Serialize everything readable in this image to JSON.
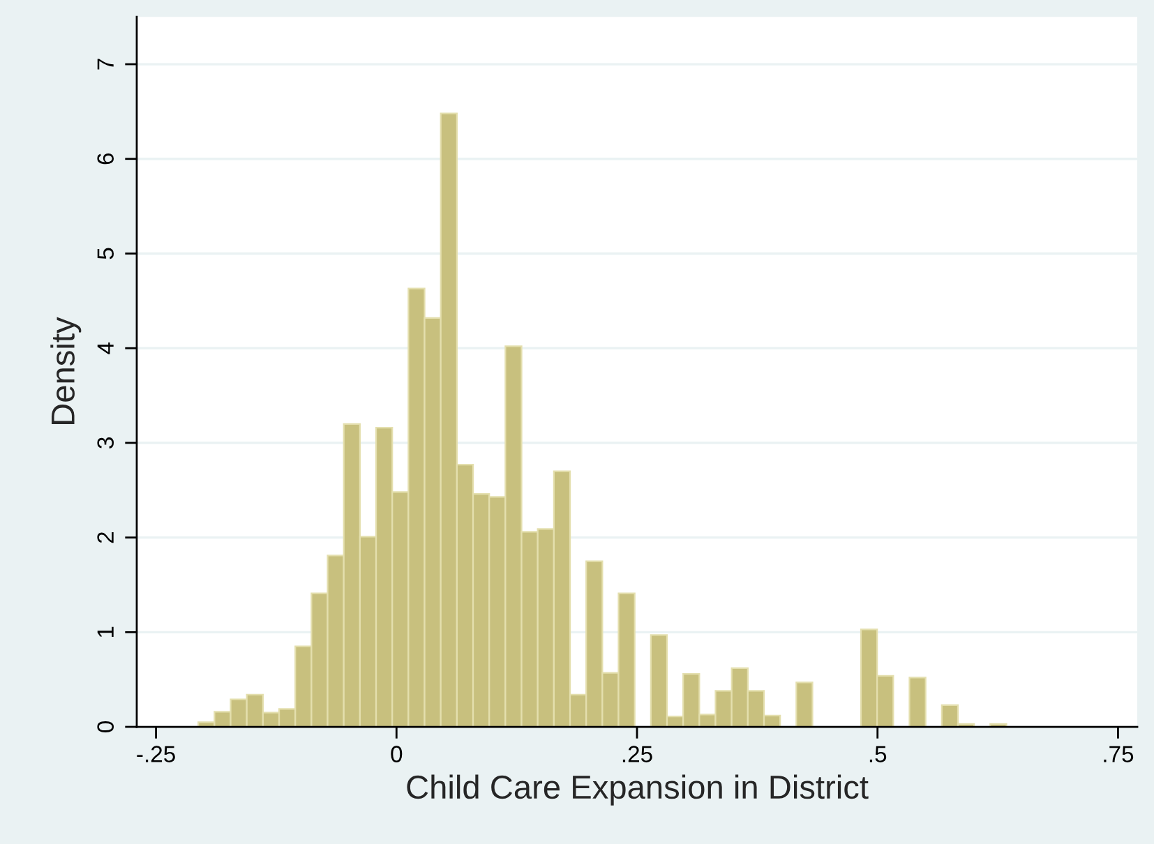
{
  "chart_data": {
    "type": "histogram",
    "xlabel": "Child Care Expansion in District",
    "ylabel": "Density",
    "color": "#c8c07e",
    "bins": [
      -0.206,
      -0.1892,
      -0.1724,
      -0.1556,
      -0.1388,
      -0.122,
      -0.1052,
      -0.0884,
      -0.0716,
      -0.0548,
      -0.038,
      -0.0212,
      -0.0044,
      0.0124,
      0.0292,
      0.046,
      0.0628,
      0.0796,
      0.0964,
      0.1132,
      0.13,
      0.1468,
      0.1636,
      0.1804,
      0.1972,
      0.214,
      0.2308,
      0.2476,
      0.2644,
      0.2812,
      0.298,
      0.3148,
      0.3316,
      0.3484,
      0.3652,
      0.382,
      0.3988,
      0.4156,
      0.4324,
      0.4492,
      0.466,
      0.4828,
      0.4996,
      0.5164,
      0.5332,
      0.55,
      0.5668,
      0.5836,
      0.6004,
      0.6172,
      0.634
    ],
    "values": [
      0.05,
      0.16,
      0.29,
      0.34,
      0.15,
      0.19,
      0.85,
      1.41,
      1.81,
      3.2,
      2.01,
      3.16,
      2.48,
      4.63,
      4.32,
      6.48,
      2.77,
      2.46,
      2.43,
      4.02,
      2.06,
      2.09,
      2.7,
      0.34,
      1.75,
      0.57,
      1.41,
      0,
      0.97,
      0.11,
      0.56,
      0.13,
      0.38,
      0.62,
      0.38,
      0.12,
      0,
      0.47,
      0,
      0,
      0,
      1.03,
      0.54,
      0,
      0.52,
      0,
      0.23,
      0.03,
      0,
      0.03
    ],
    "xlim": [
      -0.27,
      0.77
    ],
    "ylim": [
      0,
      7.5
    ],
    "xticks": [
      {
        "value": -0.25,
        "label": "-.25"
      },
      0,
      {
        "value": 0.25,
        "label": ".25"
      },
      {
        "value": 0.5,
        "label": ".5"
      },
      {
        "value": 0.75,
        "label": ".75"
      }
    ],
    "yticks": [
      0,
      1,
      2,
      3,
      4,
      5,
      6,
      7
    ],
    "grid": "y"
  }
}
